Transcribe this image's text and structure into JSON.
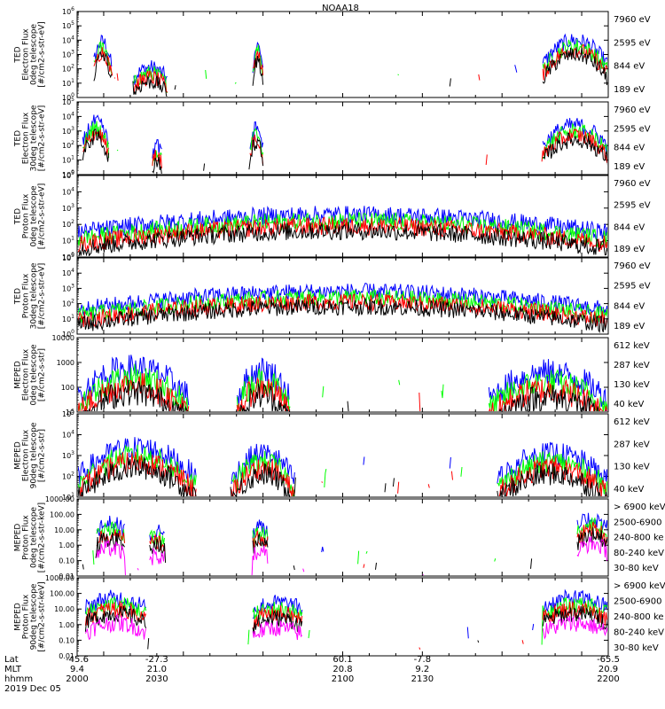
{
  "title": "NOAA18",
  "date_label": "2019 Dec 05",
  "colors": {
    "black": "#000000",
    "red": "#ff0000",
    "green": "#00ff00",
    "blue": "#0000ff",
    "magenta": "#ff00ff",
    "background": "#ffffff"
  },
  "footer": {
    "row_labels": [
      "Lat",
      "MLT",
      "hhmm"
    ],
    "columns": [
      {
        "lat": "-45.6",
        "mlt": "9.4",
        "hhmm": "2000"
      },
      {
        "lat": "-27.3",
        "mlt": "21.0",
        "hhmm": "2030"
      },
      {
        "lat": "60.1",
        "mlt": "20.8",
        "hhmm": "2100"
      },
      {
        "lat": "-7.8",
        "mlt": "9.2",
        "hhmm": "2130"
      },
      {
        "lat": "-65.5",
        "mlt": "20.9",
        "hhmm": "2200"
      }
    ]
  },
  "chart_data": [
    {
      "type": "line",
      "ylabel": [
        "TED",
        "Electron Flux",
        "0deg telescope",
        "[#/cm2-s-str-eV]"
      ],
      "yscale": "log",
      "ylim": [
        1,
        1000000
      ],
      "yticks": [
        "10^0",
        "10^1",
        "10^2",
        "10^3",
        "10^4",
        "10^5",
        "10^6"
      ],
      "series": [
        {
          "name": "7960 eV",
          "color": "black"
        },
        {
          "name": "2595 eV",
          "color": "red"
        },
        {
          "name": "844 eV",
          "color": "green"
        },
        {
          "name": "189 eV",
          "color": "blue"
        }
      ],
      "activity": [
        {
          "t": [
            2006,
            2013
          ],
          "level": 3.5
        },
        {
          "t": [
            2021,
            2034
          ],
          "level": 1.7
        },
        {
          "t": [
            2066,
            2070
          ],
          "level": 3.2
        },
        {
          "t": [
            2175,
            2200
          ],
          "level": 3.6
        }
      ]
    },
    {
      "type": "line",
      "ylabel": [
        "TED",
        "Electron Flux",
        "30deg telescope",
        "[#/cm2-s-str-eV]"
      ],
      "yscale": "log",
      "ylim": [
        1,
        100000
      ],
      "yticks": [
        "10^0",
        "10^1",
        "10^2",
        "10^3",
        "10^4",
        "10^5"
      ],
      "series": [
        {
          "name": "7960 eV",
          "color": "black"
        },
        {
          "name": "2595 eV",
          "color": "red"
        },
        {
          "name": "844 eV",
          "color": "green"
        },
        {
          "name": "189 eV",
          "color": "blue"
        }
      ],
      "activity": [
        {
          "t": [
            2002,
            2012
          ],
          "level": 3.2
        },
        {
          "t": [
            2028,
            2032
          ],
          "level": 1.6
        },
        {
          "t": [
            2065,
            2070
          ],
          "level": 2.8
        },
        {
          "t": [
            2175,
            2200
          ],
          "level": 3.0
        }
      ]
    },
    {
      "type": "line",
      "ylabel": [
        "TED",
        "Proton Flux",
        "0deg telescope",
        "[#/cm2-s-str-eV]"
      ],
      "yscale": "log",
      "ylim": [
        1,
        100000
      ],
      "yticks": [
        "10^0",
        "10^1",
        "10^2",
        "10^3",
        "10^4",
        "10^5"
      ],
      "series": [
        {
          "name": "7960 eV",
          "color": "black"
        },
        {
          "name": "2595 eV",
          "color": "red"
        },
        {
          "name": "844 eV",
          "color": "green"
        },
        {
          "name": "189 eV",
          "color": "blue"
        }
      ],
      "activity": [
        {
          "t": [
            2000,
            2200
          ],
          "level": 2.2
        }
      ]
    },
    {
      "type": "line",
      "ylabel": [
        "TED",
        "Proton Flux",
        "30deg telescope",
        "[#/cm2-s-str-eV]"
      ],
      "yscale": "log",
      "ylim": [
        1,
        100000
      ],
      "yticks": [
        "10^0",
        "10^1",
        "10^2",
        "10^3",
        "10^4",
        "10^5"
      ],
      "series": [
        {
          "name": "7960 eV",
          "color": "black"
        },
        {
          "name": "2595 eV",
          "color": "red"
        },
        {
          "name": "844 eV",
          "color": "green"
        },
        {
          "name": "189 eV",
          "color": "blue"
        }
      ],
      "activity": [
        {
          "t": [
            2000,
            2200
          ],
          "level": 2.4
        }
      ]
    },
    {
      "type": "line",
      "ylabel": [
        "MEPED",
        "Electron Flux",
        "0deg telescope",
        "[#/cm2-s-str]"
      ],
      "yscale": "log",
      "ylim": [
        10,
        10000
      ],
      "yticks": [
        "10",
        "100",
        "1000",
        "10000"
      ],
      "series": [
        {
          "name": "612 keV",
          "color": "black"
        },
        {
          "name": "287 keV",
          "color": "red"
        },
        {
          "name": "130 keV",
          "color": "green"
        },
        {
          "name": "40 keV",
          "color": "blue"
        }
      ],
      "activity": [
        {
          "t": [
            2000,
            2042
          ],
          "level": 2.4
        },
        {
          "t": [
            2060,
            2080
          ],
          "level": 2.3
        },
        {
          "t": [
            2155,
            2200
          ],
          "level": 2.2
        }
      ]
    },
    {
      "type": "line",
      "ylabel": [
        "MEPED",
        "Electron Flux",
        "90deg telescope",
        "[#/cm2-s-str]"
      ],
      "yscale": "log",
      "ylim": [
        10,
        100000
      ],
      "yticks": [
        "10^1",
        "10^2",
        "10^3",
        "10^4",
        "10^5"
      ],
      "series": [
        {
          "name": "612 keV",
          "color": "black"
        },
        {
          "name": "287 keV",
          "color": "red"
        },
        {
          "name": "130 keV",
          "color": "green"
        },
        {
          "name": "40 keV",
          "color": "blue"
        }
      ],
      "activity": [
        {
          "t": [
            2000,
            2045
          ],
          "level": 3.0
        },
        {
          "t": [
            2058,
            2082
          ],
          "level": 2.7
        },
        {
          "t": [
            2158,
            2200
          ],
          "level": 2.7
        }
      ]
    },
    {
      "type": "line",
      "ylabel": [
        "MEPED",
        "Proton Flux",
        "0deg telescope",
        "[#/cm2-s-str-keV]"
      ],
      "yscale": "log",
      "ylim": [
        0.01,
        1000
      ],
      "yticks": [
        "0.01",
        "0.10",
        "1.00",
        "10.00",
        "100.00",
        "1000.00"
      ],
      "series": [
        {
          "name": "> 6900 keV",
          "color": "magenta"
        },
        {
          "name": "2500-6900",
          "color": "black"
        },
        {
          "name": "240-800 ke",
          "color": "red"
        },
        {
          "name": "80-240 keV",
          "color": "green"
        },
        {
          "name": "30-80 keV",
          "color": "blue"
        }
      ],
      "activity": [
        {
          "t": [
            2007,
            2018
          ],
          "level": 1.0
        },
        {
          "t": [
            2027,
            2033
          ],
          "level": 0.5
        },
        {
          "t": [
            2066,
            2072
          ],
          "level": 0.8
        },
        {
          "t": [
            2188,
            2200
          ],
          "level": 1.3
        }
      ]
    },
    {
      "type": "line",
      "ylabel": [
        "MEPED",
        "Proton Flux",
        "90deg telescope",
        "[#/cm2-s-str-keV]"
      ],
      "yscale": "log",
      "ylim": [
        0.01,
        1000
      ],
      "yticks": [
        "0.01",
        "0.10",
        "1.00",
        "10.00",
        "100.00",
        "1000.00"
      ],
      "series": [
        {
          "name": "> 6900 keV",
          "color": "magenta"
        },
        {
          "name": "2500-6900",
          "color": "black"
        },
        {
          "name": "240-800 ke",
          "color": "red"
        },
        {
          "name": "80-240 keV",
          "color": "green"
        },
        {
          "name": "30-80 keV",
          "color": "blue"
        }
      ],
      "activity": [
        {
          "t": [
            2003,
            2026
          ],
          "level": 1.3
        },
        {
          "t": [
            2066,
            2085
          ],
          "level": 1.0
        },
        {
          "t": [
            2175,
            2200
          ],
          "level": 1.3
        }
      ]
    }
  ]
}
